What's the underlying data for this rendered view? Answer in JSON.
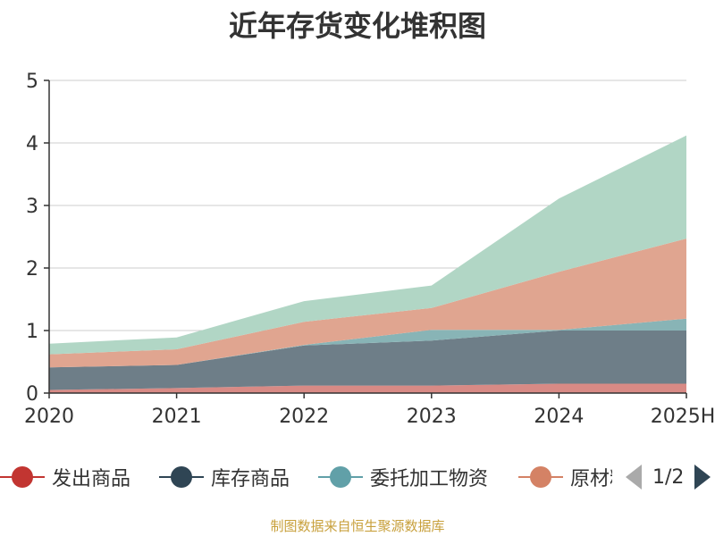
{
  "title": "近年存货变化堆积图",
  "source_note": "制图数据来自恒生聚源数据库",
  "chart_data": {
    "type": "area",
    "stacked": true,
    "categories": [
      "2020",
      "2021",
      "2022",
      "2023",
      "2024",
      "2025H"
    ],
    "ylim": [
      0,
      5
    ],
    "yticks": [
      0,
      1,
      2,
      3,
      4,
      5
    ],
    "ylabel": "",
    "grid": true,
    "series": [
      {
        "name": "发出商品",
        "color": "#c23531",
        "area_color": "#d88a85",
        "values": [
          0.05,
          0.08,
          0.12,
          0.12,
          0.15,
          0.15
        ]
      },
      {
        "name": "库存商品",
        "color": "#2f4554",
        "area_color": "#6e7e88",
        "values": [
          0.36,
          0.37,
          0.64,
          0.72,
          0.85,
          0.85
        ]
      },
      {
        "name": "委托加工物资",
        "color": "#61a0a8",
        "area_color": "#88b4b6",
        "values": [
          0.0,
          0.0,
          0.01,
          0.17,
          0.01,
          0.19
        ]
      },
      {
        "name": "原材料",
        "color": "#d48265",
        "area_color": "#e0a590",
        "values": [
          0.21,
          0.25,
          0.37,
          0.35,
          0.93,
          1.28
        ]
      },
      {
        "color": "#91c7ae",
        "area_color": "#b1d6c5",
        "values": [
          0.17,
          0.19,
          0.33,
          0.36,
          1.17,
          1.65
        ]
      }
    ]
  },
  "legend": {
    "items": [
      {
        "label": "发出商品",
        "color": "#c23531"
      },
      {
        "label": "库存商品",
        "color": "#2f4554"
      },
      {
        "label": "委托加工物资",
        "color": "#61a0a8"
      },
      {
        "label": "原材料",
        "color": "#d48265"
      }
    ],
    "page_text": "1/2"
  }
}
